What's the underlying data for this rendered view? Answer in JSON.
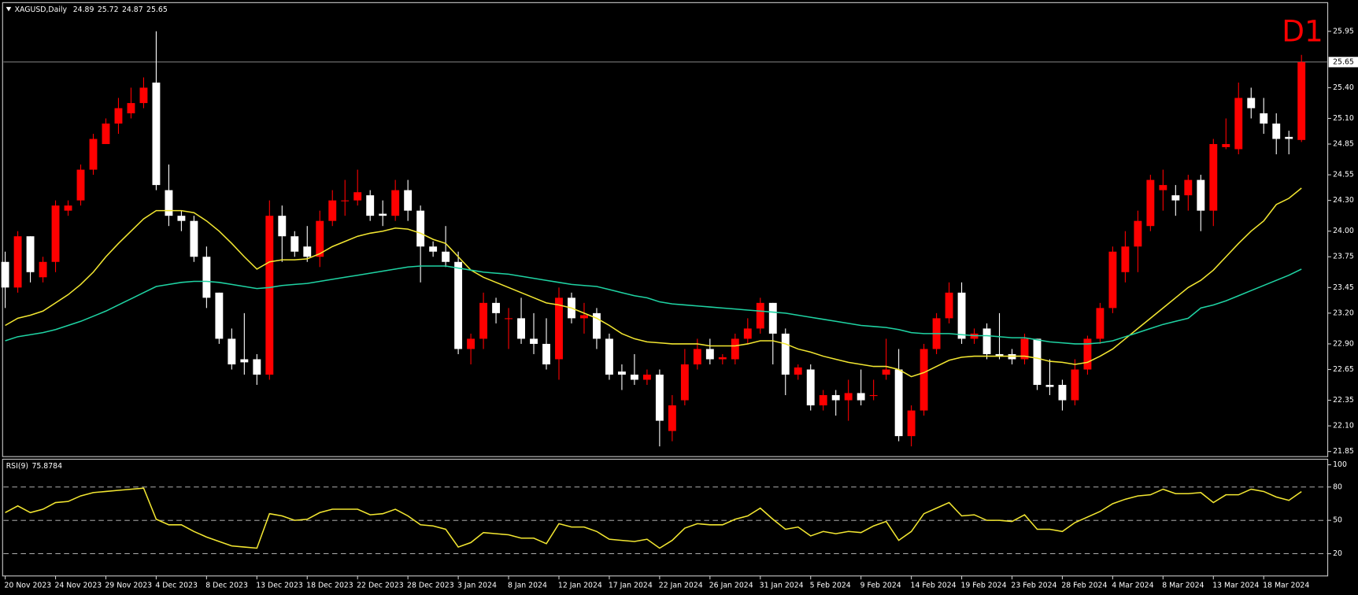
{
  "chart_data": [
    {
      "type": "candlestick",
      "title": "XAGUSD,Daily",
      "period": "D1",
      "period_color": "#ff0000",
      "up_color": "#ff0000",
      "down_color": "#ffffff",
      "categories": [
        "20 Nov 2023",
        null,
        null,
        null,
        "24 Nov 2023",
        null,
        null,
        null,
        "29 Nov 2023",
        null,
        null,
        null,
        "4 Dec 2023",
        null,
        null,
        null,
        "8 Dec 2023",
        null,
        null,
        null,
        "13 Dec 2023",
        null,
        null,
        null,
        "18 Dec 2023",
        null,
        null,
        null,
        "22 Dec 2023",
        null,
        null,
        null,
        "28 Dec 2023",
        null,
        null,
        null,
        "3 Jan 2024",
        null,
        null,
        null,
        "8 Jan 2024",
        null,
        null,
        null,
        "12 Jan 2024",
        null,
        null,
        null,
        "17 Jan 2024",
        null,
        null,
        null,
        "22 Jan 2024",
        null,
        null,
        null,
        "26 Jan 2024",
        null,
        null,
        null,
        "31 Jan 2024",
        null,
        null,
        null,
        "5 Feb 2024",
        null,
        null,
        null,
        "9 Feb 2024",
        null,
        null,
        null,
        "14 Feb 2024",
        null,
        null,
        null,
        "19 Feb 2024",
        null,
        null,
        null,
        "23 Feb 2024",
        null,
        null,
        null,
        "28 Feb 2024",
        null,
        null,
        null,
        "4 Mar 2024",
        null,
        null,
        null,
        "8 Mar 2024",
        null,
        null,
        null,
        "13 Mar 2024",
        null,
        null,
        null,
        "18 Mar 2024",
        null,
        null,
        null
      ],
      "open": [
        23.7,
        23.45,
        23.95,
        23.55,
        23.7,
        24.2,
        24.3,
        24.6,
        24.85,
        25.05,
        25.15,
        25.25,
        25.45,
        24.4,
        24.15,
        24.1,
        23.75,
        23.4,
        22.95,
        22.75,
        22.75,
        22.6,
        24.15,
        23.95,
        23.85,
        23.75,
        24.1,
        24.3,
        24.3,
        24.35,
        24.17,
        24.15,
        24.4,
        24.2,
        23.85,
        23.8,
        23.7,
        22.85,
        22.95,
        23.3,
        23.15,
        23.15,
        22.95,
        22.9,
        22.75,
        23.35,
        23.15,
        23.2,
        22.95,
        22.63,
        22.6,
        22.55,
        22.6,
        22.05,
        22.35,
        22.7,
        22.85,
        22.75,
        22.75,
        22.95,
        23.05,
        23.3,
        23.0,
        22.6,
        22.65,
        22.3,
        22.4,
        22.35,
        22.42,
        22.4,
        22.6,
        22.65,
        22.0,
        22.25,
        22.85,
        23.15,
        23.4,
        22.95,
        23.05,
        22.8,
        22.8,
        22.75,
        22.95,
        22.5,
        22.5,
        22.35,
        22.65,
        22.95,
        23.25,
        23.6,
        23.85,
        24.05,
        24.4,
        24.35,
        24.35,
        24.5,
        24.2,
        24.82,
        24.8,
        25.3,
        25.15,
        25.05,
        24.92,
        24.89
      ],
      "high": [
        23.8,
        24.0,
        23.95,
        23.75,
        24.3,
        24.3,
        24.65,
        24.95,
        25.1,
        25.3,
        25.4,
        25.5,
        25.95,
        24.65,
        24.2,
        24.15,
        23.85,
        23.4,
        23.05,
        23.2,
        22.8,
        24.3,
        24.25,
        24.0,
        24.05,
        24.2,
        24.4,
        24.5,
        24.6,
        24.4,
        24.3,
        24.5,
        24.5,
        24.25,
        23.9,
        24.05,
        23.8,
        23.0,
        23.4,
        23.35,
        23.25,
        23.35,
        23.2,
        23.15,
        23.45,
        23.4,
        23.3,
        23.25,
        23.0,
        22.7,
        22.8,
        22.65,
        22.65,
        22.4,
        22.85,
        22.95,
        22.95,
        22.8,
        23.0,
        23.15,
        23.35,
        23.3,
        23.05,
        22.7,
        22.7,
        22.45,
        22.45,
        22.55,
        22.65,
        22.55,
        22.95,
        22.85,
        22.3,
        22.9,
        23.2,
        23.5,
        23.5,
        23.05,
        23.1,
        23.2,
        22.85,
        23.0,
        22.95,
        22.75,
        22.55,
        22.75,
        22.98,
        23.3,
        23.85,
        24.0,
        24.2,
        24.55,
        24.6,
        24.45,
        24.55,
        24.55,
        24.9,
        25.1,
        25.45,
        25.4,
        25.3,
        25.15,
        24.98,
        25.72
      ],
      "low": [
        23.25,
        23.4,
        23.5,
        23.5,
        23.6,
        24.15,
        24.25,
        24.55,
        24.85,
        24.95,
        25.1,
        25.2,
        24.4,
        24.05,
        24.0,
        23.7,
        23.25,
        22.9,
        22.65,
        22.6,
        22.5,
        22.55,
        23.7,
        23.75,
        23.7,
        23.65,
        24.05,
        24.15,
        24.25,
        24.1,
        24.05,
        24.1,
        24.1,
        23.5,
        23.75,
        23.65,
        22.8,
        22.7,
        22.85,
        23.1,
        22.85,
        22.9,
        22.8,
        22.65,
        22.55,
        23.1,
        23.0,
        22.85,
        22.55,
        22.45,
        22.5,
        22.5,
        21.9,
        21.95,
        22.3,
        22.65,
        22.7,
        22.7,
        22.7,
        22.9,
        23.0,
        22.7,
        22.4,
        22.55,
        22.25,
        22.25,
        22.2,
        22.15,
        22.3,
        22.35,
        22.55,
        21.95,
        21.9,
        22.2,
        22.8,
        23.1,
        22.9,
        22.9,
        22.75,
        22.75,
        22.7,
        22.7,
        22.45,
        22.4,
        22.25,
        22.3,
        22.6,
        22.9,
        23.2,
        23.5,
        23.6,
        24.0,
        24.2,
        24.15,
        24.2,
        24.0,
        24.05,
        24.8,
        24.75,
        25.1,
        24.95,
        24.75,
        24.75,
        24.87
      ],
      "close": [
        23.45,
        23.95,
        23.6,
        23.7,
        24.25,
        24.25,
        24.6,
        24.9,
        25.05,
        25.2,
        25.25,
        25.4,
        24.45,
        24.15,
        24.1,
        23.75,
        23.35,
        22.95,
        22.7,
        22.72,
        22.6,
        24.15,
        23.95,
        23.8,
        23.75,
        24.1,
        24.3,
        24.3,
        24.38,
        24.15,
        24.15,
        24.4,
        24.2,
        23.85,
        23.8,
        23.7,
        22.85,
        22.95,
        23.3,
        23.2,
        23.15,
        22.95,
        22.9,
        22.7,
        23.35,
        23.15,
        23.18,
        22.95,
        22.6,
        22.6,
        22.55,
        22.6,
        22.15,
        22.3,
        22.7,
        22.85,
        22.75,
        22.77,
        22.95,
        23.05,
        23.3,
        23.0,
        22.6,
        22.67,
        22.3,
        22.4,
        22.35,
        22.42,
        22.35,
        22.4,
        22.65,
        22.0,
        22.25,
        22.85,
        23.15,
        23.4,
        22.95,
        23.0,
        22.8,
        22.78,
        22.75,
        22.95,
        22.5,
        22.48,
        22.35,
        22.65,
        22.95,
        23.25,
        23.8,
        23.85,
        24.1,
        24.5,
        24.45,
        24.3,
        24.5,
        24.2,
        24.85,
        24.85,
        25.3,
        25.2,
        25.05,
        24.9,
        24.9,
        25.65
      ],
      "series": [
        {
          "color": "#f2e631",
          "values": [
            23.08,
            23.15,
            23.18,
            23.22,
            23.3,
            23.38,
            23.48,
            23.6,
            23.75,
            23.88,
            24.0,
            24.12,
            24.2,
            24.2,
            24.2,
            24.18,
            24.1,
            24.0,
            23.88,
            23.75,
            23.63,
            23.7,
            23.72,
            23.72,
            23.73,
            23.78,
            23.85,
            23.9,
            23.95,
            23.98,
            24.0,
            24.03,
            24.02,
            23.98,
            23.92,
            23.88,
            23.75,
            23.62,
            23.55,
            23.5,
            23.45,
            23.4,
            23.35,
            23.3,
            23.28,
            23.25,
            23.2,
            23.15,
            23.08,
            23.0,
            22.95,
            22.92,
            22.91,
            22.9,
            22.9,
            22.9,
            22.88,
            22.88,
            22.88,
            22.9,
            22.93,
            22.93,
            22.9,
            22.85,
            22.82,
            22.78,
            22.75,
            22.72,
            22.7,
            22.68,
            22.68,
            22.65,
            22.58,
            22.62,
            22.68,
            22.74,
            22.77,
            22.78,
            22.78,
            22.78,
            22.78,
            22.78,
            22.76,
            22.73,
            22.72,
            22.7,
            22.72,
            22.78,
            22.85,
            22.95,
            23.05,
            23.15,
            23.25,
            23.35,
            23.45,
            23.52,
            23.62,
            23.75,
            23.88,
            24.0,
            24.1,
            24.26,
            24.32,
            24.42
          ]
        },
        {
          "color": "#1fd3a3",
          "values": [
            22.93,
            22.97,
            22.99,
            23.01,
            23.04,
            23.08,
            23.12,
            23.17,
            23.22,
            23.28,
            23.34,
            23.4,
            23.46,
            23.48,
            23.5,
            23.51,
            23.51,
            23.5,
            23.48,
            23.46,
            23.44,
            23.45,
            23.47,
            23.48,
            23.49,
            23.51,
            23.53,
            23.55,
            23.57,
            23.59,
            23.61,
            23.63,
            23.65,
            23.66,
            23.66,
            23.66,
            23.64,
            23.62,
            23.6,
            23.59,
            23.58,
            23.56,
            23.54,
            23.52,
            23.5,
            23.48,
            23.47,
            23.46,
            23.43,
            23.4,
            23.37,
            23.35,
            23.31,
            23.29,
            23.28,
            23.27,
            23.26,
            23.25,
            23.24,
            23.23,
            23.22,
            23.21,
            23.2,
            23.18,
            23.16,
            23.14,
            23.12,
            23.1,
            23.08,
            23.07,
            23.06,
            23.04,
            23.01,
            23.0,
            23.0,
            23.0,
            22.99,
            22.98,
            22.98,
            22.97,
            22.96,
            22.96,
            22.94,
            22.92,
            22.91,
            22.9,
            22.9,
            22.91,
            22.93,
            22.97,
            23.01,
            23.05,
            23.09,
            23.12,
            23.15,
            23.25,
            23.28,
            23.32,
            23.37,
            23.42,
            23.47,
            23.52,
            23.57,
            23.63
          ]
        }
      ],
      "ylim": [
        21.8,
        26.23
      ],
      "yticks": [
        25.95,
        {
          "value": 25.4,
          "label": "25.40"
        },
        {
          "value": 25.1,
          "label": "25.10"
        },
        24.85,
        24.55,
        {
          "value": 24.3,
          "label": "24.30"
        },
        {
          "value": 24.0,
          "label": "24.00"
        },
        23.75,
        23.45,
        {
          "value": 23.2,
          "label": "23.20"
        },
        {
          "value": 22.9,
          "label": "22.90"
        },
        22.65,
        22.35,
        {
          "value": 22.1,
          "label": "22.10"
        },
        21.85
      ]
    },
    {
      "type": "line",
      "title": "RSI(9)",
      "color": "#f2e631",
      "values": [
        57,
        63,
        57,
        60,
        66,
        67,
        72,
        75,
        76,
        77,
        78,
        79,
        51,
        46,
        46,
        40,
        35,
        31,
        27,
        26,
        25,
        56,
        54,
        50,
        51,
        57,
        60,
        60,
        60,
        55,
        56,
        60,
        54,
        46,
        45,
        42,
        26,
        30,
        39,
        38,
        37,
        34,
        34,
        29,
        47,
        44,
        44,
        40,
        33,
        32,
        31,
        33,
        25,
        32,
        43,
        47,
        46,
        46,
        51,
        54,
        61,
        51,
        42,
        44,
        36,
        40,
        38,
        40,
        39,
        45,
        49,
        32,
        40,
        56,
        61,
        66,
        54,
        55,
        50,
        50,
        49,
        55,
        42,
        42,
        40,
        48,
        53,
        58,
        65,
        69,
        72,
        73,
        78,
        74,
        74,
        75,
        66,
        73,
        73,
        78,
        76,
        71,
        68,
        75.8784
      ],
      "ylim": [
        0,
        105
      ],
      "yticks": [
        100,
        80,
        50,
        20
      ],
      "levels": [
        80,
        50,
        20
      ]
    }
  ]
}
